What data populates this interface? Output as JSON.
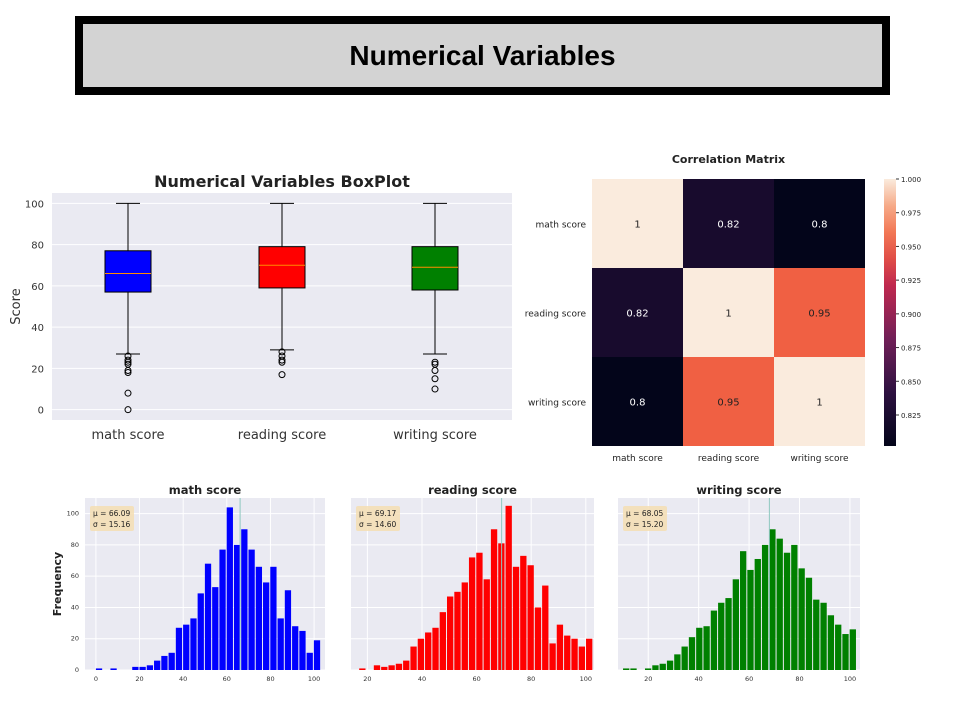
{
  "page": {
    "title": "Numerical Variables"
  },
  "colors": {
    "math": "#0000ff",
    "reading": "#ff0000",
    "writing": "#008000",
    "median": "#ff8c00",
    "panel_bg": "#eaeaf2",
    "mean_line": "#8fc8c0"
  },
  "chart_data": [
    {
      "id": "boxplot",
      "type": "box",
      "title": "Numerical Variables BoxPlot",
      "ylabel": "Score",
      "ylim": [
        -5,
        105
      ],
      "yticks": [
        0,
        20,
        40,
        60,
        80,
        100
      ],
      "categories": [
        "math score",
        "reading score",
        "writing score"
      ],
      "boxes": [
        {
          "name": "math score",
          "min": 27,
          "q1": 57,
          "median": 66,
          "q3": 77,
          "max": 100,
          "outliers": [
            26,
            24,
            23,
            22,
            19,
            18,
            8,
            0
          ]
        },
        {
          "name": "reading score",
          "min": 29,
          "q1": 59,
          "median": 70,
          "q3": 79,
          "max": 100,
          "outliers": [
            28,
            26,
            24,
            23,
            17
          ]
        },
        {
          "name": "writing score",
          "min": 27,
          "q1": 58,
          "median": 69,
          "q3": 79,
          "max": 100,
          "outliers": [
            23,
            22,
            19,
            15,
            10
          ]
        }
      ]
    },
    {
      "id": "heatmap",
      "type": "heatmap",
      "title": "Correlation Matrix",
      "labels": [
        "math score",
        "reading score",
        "writing score"
      ],
      "matrix": [
        [
          1,
          0.82,
          0.8
        ],
        [
          0.82,
          1,
          0.95
        ],
        [
          0.8,
          0.95,
          1
        ]
      ],
      "cell_text": [
        [
          "1",
          "0.82",
          "0.8"
        ],
        [
          "0.82",
          "1",
          "0.95"
        ],
        [
          "0.8",
          "0.95",
          "1"
        ]
      ],
      "colorbar": {
        "min": 0.8,
        "max": 1.0,
        "ticks": [
          "1.000",
          "0.975",
          "0.950",
          "0.925",
          "0.900",
          "0.875",
          "0.850",
          "0.825"
        ]
      }
    },
    {
      "id": "hist-math",
      "type": "histogram",
      "title": "math score",
      "ylabel": "Frequency",
      "xlim": [
        -5,
        105
      ],
      "ylim": [
        0,
        110
      ],
      "xticks": [
        0,
        20,
        40,
        60,
        80,
        100
      ],
      "yticks": [
        0,
        20,
        40,
        60,
        80,
        100
      ],
      "bin_start": 0,
      "bin_width": 3.33,
      "counts": [
        1,
        0,
        1,
        0,
        0,
        2,
        2,
        3,
        6,
        9,
        11,
        27,
        29,
        33,
        49,
        68,
        53,
        77,
        104,
        80,
        90,
        77,
        66,
        56,
        66,
        33,
        51,
        28,
        25,
        11,
        19
      ],
      "mean": 66.09,
      "stats": [
        "$\\mu = 66.09$",
        "$\\sigma = 15.16$"
      ],
      "mean_label": "μ = 66.09",
      "std_label": "σ = 15.16"
    },
    {
      "id": "hist-reading",
      "type": "histogram",
      "title": "reading score",
      "xlim": [
        14,
        103
      ],
      "ylim": [
        0,
        110
      ],
      "xticks": [
        20,
        40,
        60,
        80,
        100
      ],
      "bin_start": 17,
      "bin_width": 2.68,
      "counts": [
        1,
        0,
        3,
        2,
        3,
        4,
        6,
        15,
        20,
        24,
        27,
        37,
        47,
        50,
        56,
        72,
        75,
        58,
        90,
        81,
        105,
        66,
        73,
        67,
        40,
        54,
        17,
        29,
        22,
        20,
        15,
        20
      ],
      "mean": 69.17,
      "mean_label": "μ = 69.17",
      "std_label": "σ = 14.60"
    },
    {
      "id": "hist-writing",
      "type": "histogram",
      "title": "writing score",
      "xlim": [
        8,
        104
      ],
      "ylim": [
        0,
        110
      ],
      "xticks": [
        20,
        40,
        60,
        80,
        100
      ],
      "bin_start": 10,
      "bin_width": 2.9,
      "counts": [
        1,
        1,
        0,
        1,
        3,
        4,
        6,
        10,
        15,
        21,
        27,
        28,
        38,
        43,
        46,
        58,
        76,
        64,
        71,
        80,
        90,
        84,
        75,
        80,
        65,
        59,
        45,
        43,
        35,
        29,
        23,
        26
      ],
      "mean": 68.05,
      "mean_label": "μ = 68.05",
      "std_label": "σ = 15.20"
    }
  ]
}
